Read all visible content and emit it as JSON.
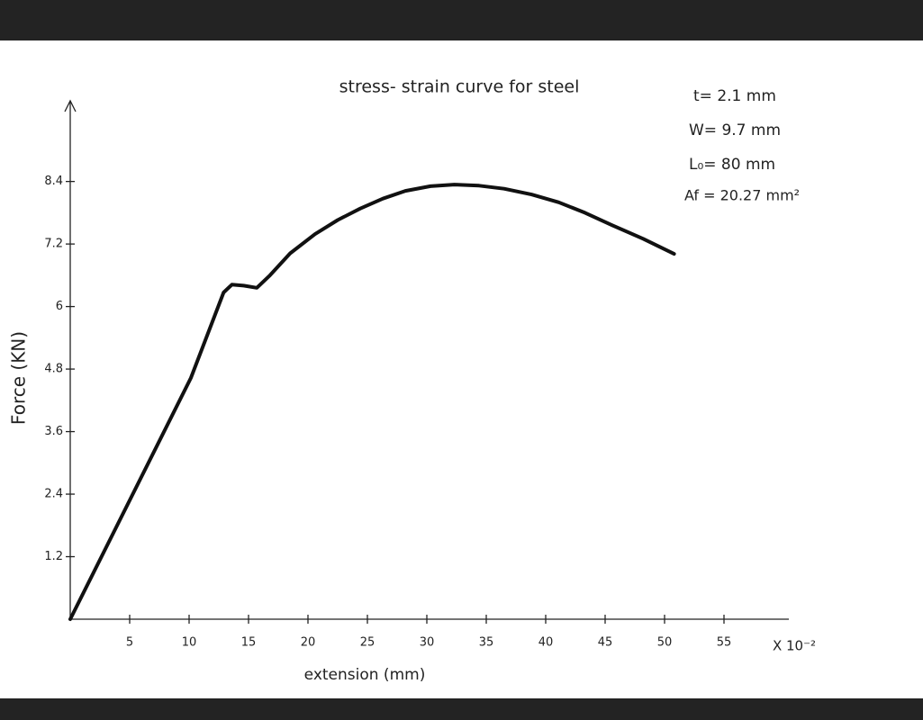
{
  "chart_data": {
    "type": "line",
    "title": "stress- strain curve for steel",
    "x_label": "extension (mm)",
    "x_multiplier": "X 10⁻²",
    "y_label": "Force (KN)",
    "annotations": [
      "t= 2.1 mm",
      "W= 9.7 mm",
      "L₀= 80 mm",
      "Af = 20.27 mm²"
    ],
    "x": [
      0,
      10.15,
      12.9,
      13.6,
      14.6,
      15.7,
      16.8,
      18.5,
      20.6,
      22.5,
      24.4,
      26.3,
      28.2,
      30.3,
      32.3,
      34.4,
      36.5,
      38.8,
      41.1,
      43.3,
      45.6,
      48.2,
      50.8
    ],
    "values": [
      0,
      4.63,
      6.27,
      6.42,
      6.4,
      6.36,
      6.6,
      7.02,
      7.39,
      7.66,
      7.88,
      8.07,
      8.22,
      8.31,
      8.34,
      8.32,
      8.26,
      8.15,
      8.0,
      7.8,
      7.56,
      7.3,
      7.01
    ],
    "color": "#111111",
    "xlim": [
      0,
      60
    ],
    "xticks": [
      5,
      10,
      15,
      20,
      25,
      30,
      35,
      40,
      45,
      50,
      55
    ],
    "ylim": [
      0,
      10
    ],
    "yticks": [
      1.2,
      2.4,
      3.6,
      4.8,
      6,
      7.2,
      8.4
    ],
    "grid": false
  }
}
